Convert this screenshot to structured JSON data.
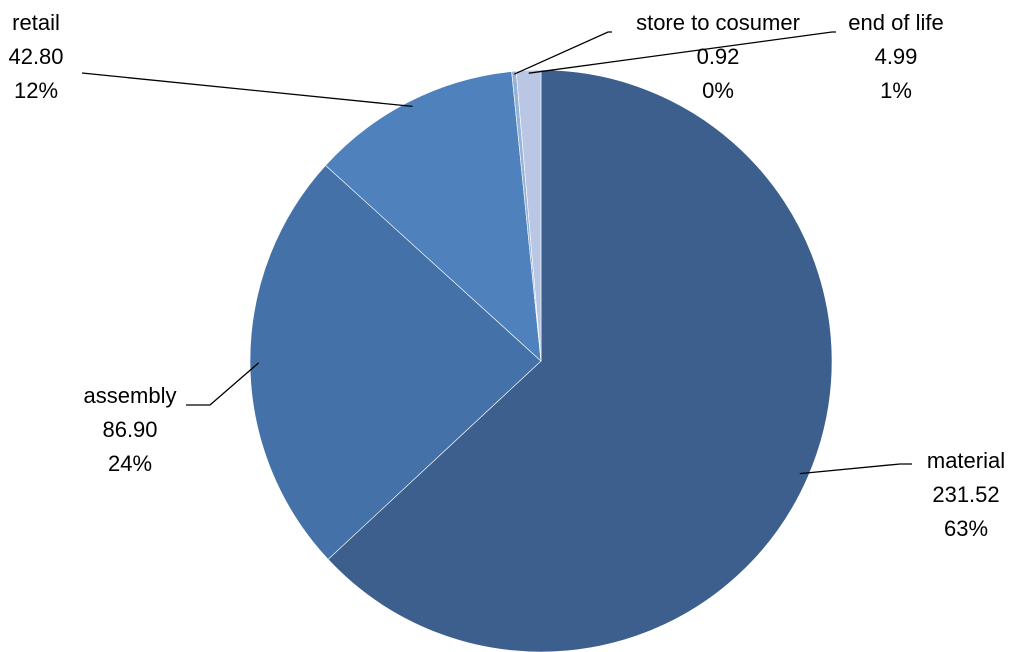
{
  "chart_data": {
    "type": "pie",
    "start": "top",
    "direction": "clockwise",
    "slices": [
      {
        "name": "material",
        "value": 231.52,
        "value_label": "231.52",
        "percent_label": "63%",
        "color": "#3C5F8E"
      },
      {
        "name": "assembly",
        "value": 86.9,
        "value_label": "86.90",
        "percent_label": "24%",
        "color": "#4472A8"
      },
      {
        "name": "retail",
        "value": 42.8,
        "value_label": "42.80",
        "percent_label": "12%",
        "color": "#4F81BD"
      },
      {
        "name": "store to cosumer",
        "value": 0.92,
        "value_label": "0.92",
        "percent_label": "0%",
        "color": "#95B3D7"
      },
      {
        "name": "end of life",
        "value": 4.99,
        "value_label": "4.99",
        "percent_label": "1%",
        "color": "#B9C7E4"
      }
    ],
    "legend": "none",
    "data_labels": "category, value, percent"
  }
}
